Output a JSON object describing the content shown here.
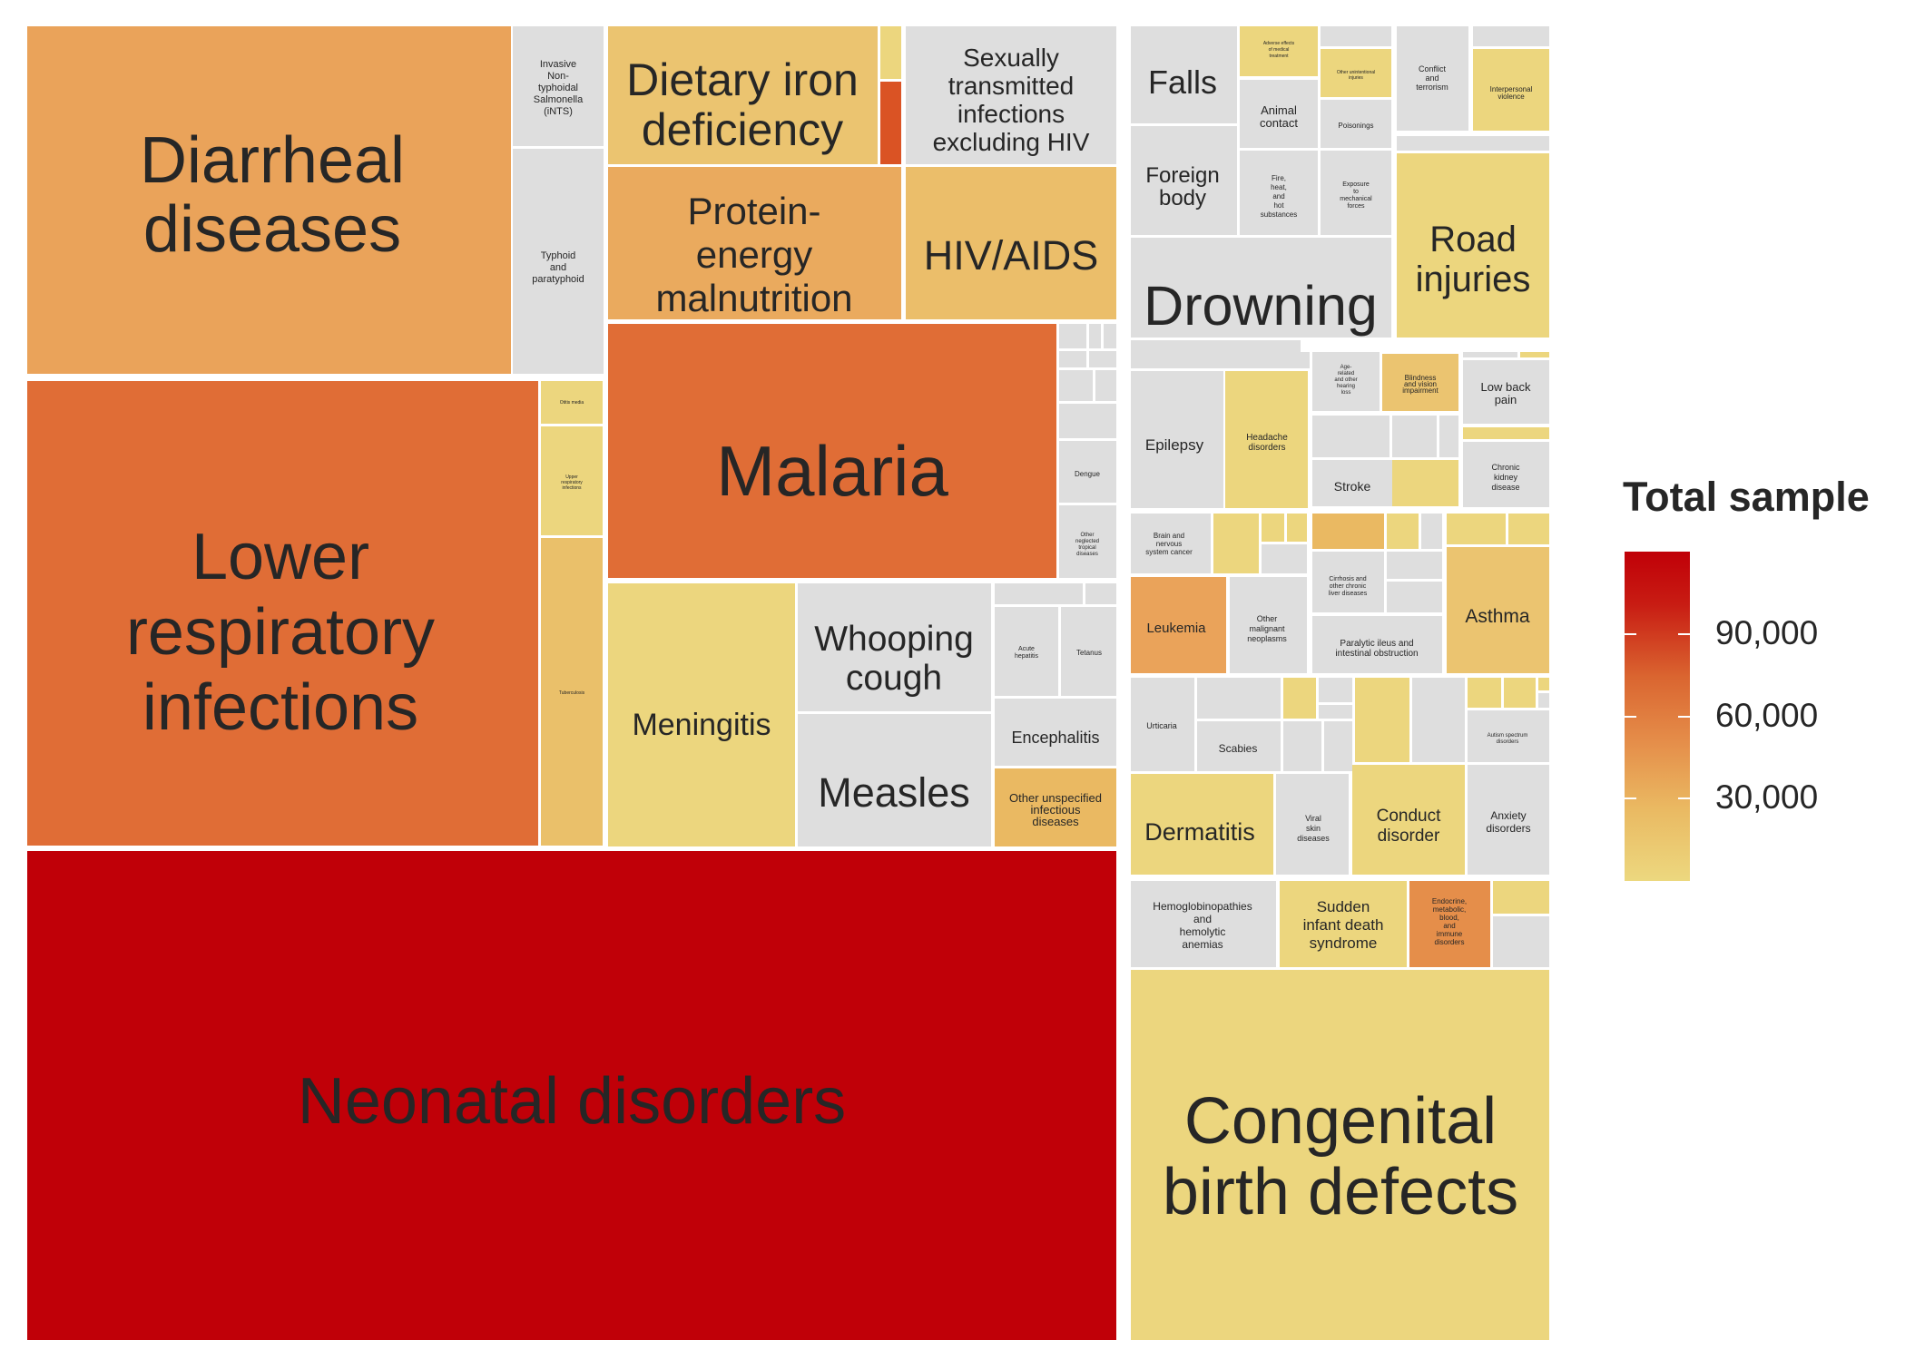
{
  "chart_data": {
    "type": "treemap",
    "legend": {
      "title": "Total sample",
      "ticks": [
        {
          "value": 30000,
          "label": "30,000"
        },
        {
          "value": 60000,
          "label": "60,000"
        },
        {
          "value": 90000,
          "label": "90,000"
        }
      ],
      "placement": "right"
    },
    "color_scale": [
      "#ECD87F",
      "#EAB962",
      "#E58E4A",
      "#DA6530",
      "#C00008"
    ],
    "unlabeled_color": "#DEDEDE",
    "items": [
      {
        "label": "Diarrheal diseases",
        "color": "#EAA35A"
      },
      {
        "label": "Invasive Non-typhoidal Salmonella (iNTS)",
        "color": "#DEDEDE"
      },
      {
        "label": "Typhoid and paratyphoid",
        "color": "#DEDEDE"
      },
      {
        "label": "Lower respiratory infections",
        "color": "#E06D36"
      },
      {
        "label": "Otitis media",
        "color": "#ECD67E"
      },
      {
        "label": "Upper respiratory infections",
        "color": "#ECD67E"
      },
      {
        "label": "Tuberculosis",
        "color": "#EAC06A"
      },
      {
        "label": "Dietary iron deficiency",
        "color": "#EBC470"
      },
      {
        "label": "Protein-energy malnutrition",
        "color": "#EAAA5E"
      },
      {
        "label": "Sexually transmitted infections excluding HIV",
        "color": "#DEDEDE"
      },
      {
        "label": "HIV/AIDS",
        "color": "#EBBE6A"
      },
      {
        "label": "Malaria",
        "color": "#E06D36"
      },
      {
        "label": "Dengue",
        "color": "#DEDEDE"
      },
      {
        "label": "Other neglected tropical diseases",
        "color": "#DEDEDE"
      },
      {
        "label": "Meningitis",
        "color": "#ECD67E"
      },
      {
        "label": "Whooping cough",
        "color": "#DEDEDE"
      },
      {
        "label": "Measles",
        "color": "#DEDEDE"
      },
      {
        "label": "Acute hepatitis",
        "color": "#DEDEDE"
      },
      {
        "label": "Tetanus",
        "color": "#DEDEDE"
      },
      {
        "label": "Encephalitis",
        "color": "#DEDEDE"
      },
      {
        "label": "Other unspecified infectious diseases",
        "color": "#EAB962"
      },
      {
        "label": "Neonatal disorders",
        "color": "#C00008"
      },
      {
        "label": "Falls",
        "color": "#DEDEDE"
      },
      {
        "label": "Adverse effects of medical treatment",
        "color": "#ECD67E"
      },
      {
        "label": "Other unintentional injuries",
        "color": "#ECD67E"
      },
      {
        "label": "Conflict and terrorism",
        "color": "#DEDEDE"
      },
      {
        "label": "Interpersonal violence",
        "color": "#ECD67E"
      },
      {
        "label": "Animal contact",
        "color": "#DEDEDE"
      },
      {
        "label": "Poisonings",
        "color": "#DEDEDE"
      },
      {
        "label": "Foreign body",
        "color": "#DEDEDE"
      },
      {
        "label": "Fire, heat, and hot substances",
        "color": "#DEDEDE"
      },
      {
        "label": "Exposure to mechanical forces",
        "color": "#DEDEDE"
      },
      {
        "label": "Road injuries",
        "color": "#ECD67E"
      },
      {
        "label": "Drowning",
        "color": "#DEDEDE"
      },
      {
        "label": "Age-related and other hearing loss",
        "color": "#DEDEDE"
      },
      {
        "label": "Blindness and vision impairment",
        "color": "#EBC470"
      },
      {
        "label": "Low back pain",
        "color": "#DEDEDE"
      },
      {
        "label": "Epilepsy",
        "color": "#DEDEDE"
      },
      {
        "label": "Headache disorders",
        "color": "#ECD67E"
      },
      {
        "label": "Stroke",
        "color": "#DEDEDE"
      },
      {
        "label": "Chronic kidney disease",
        "color": "#DEDEDE"
      },
      {
        "label": "Brain and nervous system cancer",
        "color": "#DEDEDE"
      },
      {
        "label": "Cirrhosis and other chronic liver diseases",
        "color": "#DEDEDE"
      },
      {
        "label": "Leukemia",
        "color": "#EAA35A"
      },
      {
        "label": "Other malignant neoplasms",
        "color": "#DEDEDE"
      },
      {
        "label": "Paralytic ileus and intestinal obstruction",
        "color": "#DEDEDE"
      },
      {
        "label": "Asthma",
        "color": "#EBC470"
      },
      {
        "label": "Urticaria",
        "color": "#DEDEDE"
      },
      {
        "label": "Scabies",
        "color": "#DEDEDE"
      },
      {
        "label": "Autism spectrum disorders",
        "color": "#DEDEDE"
      },
      {
        "label": "Dermatitis",
        "color": "#ECD67E"
      },
      {
        "label": "Viral skin diseases",
        "color": "#DEDEDE"
      },
      {
        "label": "Conduct disorder",
        "color": "#ECD67E"
      },
      {
        "label": "Anxiety disorders",
        "color": "#DEDEDE"
      },
      {
        "label": "Hemoglobinopathies and hemolytic anemias",
        "color": "#DEDEDE"
      },
      {
        "label": "Sudden infant death syndrome",
        "color": "#ECD67E"
      },
      {
        "label": "Endocrine, metabolic, blood, and immune disorders",
        "color": "#E58E4A"
      },
      {
        "label": "Congenital birth defects",
        "color": "#ECD67E"
      }
    ]
  }
}
